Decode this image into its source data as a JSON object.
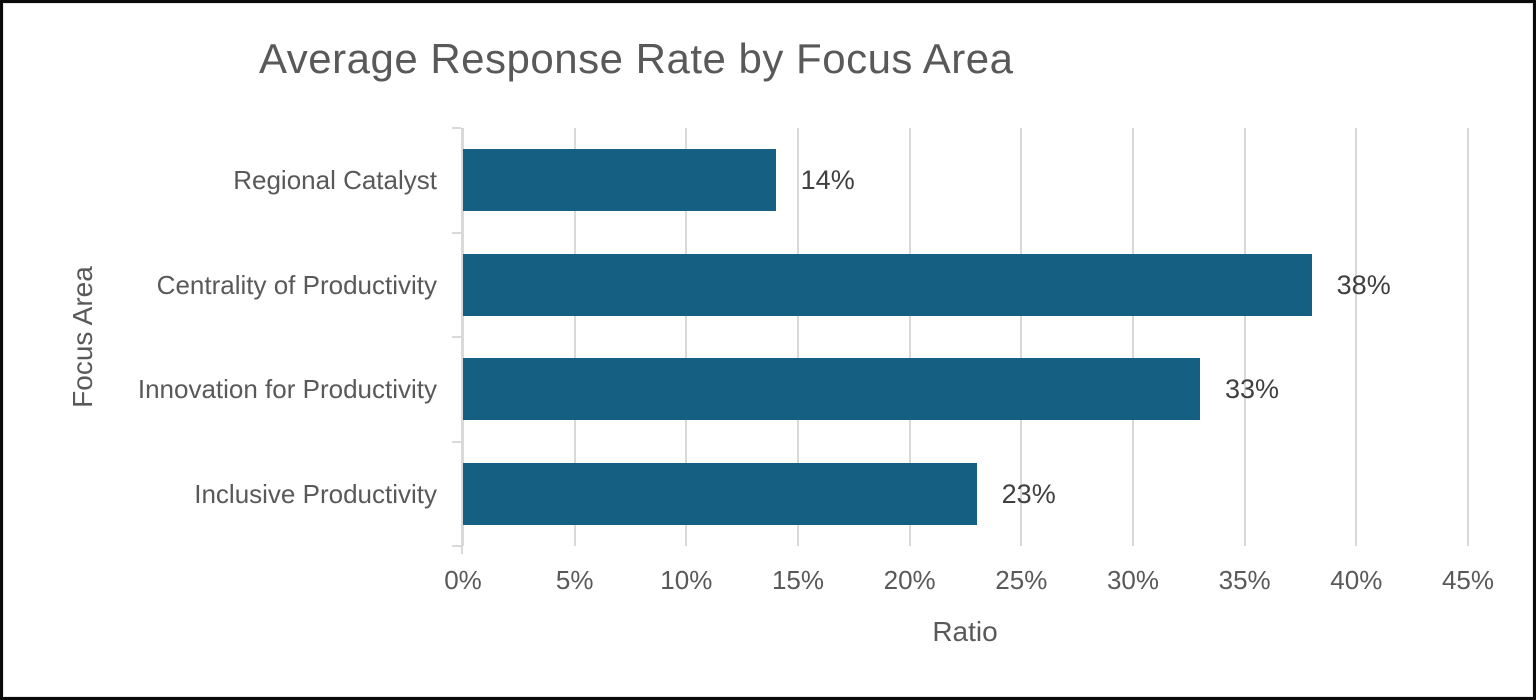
{
  "chart_data": {
    "type": "bar",
    "orientation": "horizontal",
    "title": "Average Response Rate by Focus Area",
    "categories": [
      "Regional Catalyst",
      "Centrality of Productivity",
      "Innovation for Productivity",
      "Inclusive Productivity"
    ],
    "values": [
      14,
      38,
      33,
      23
    ],
    "data_labels": [
      "14%",
      "38%",
      "33%",
      "23%"
    ],
    "xlabel": "Ratio",
    "ylabel": "Focus Area",
    "x_tick_labels": [
      "0%",
      "5%",
      "10%",
      "15%",
      "20%",
      "25%",
      "30%",
      "35%",
      "40%",
      "45%"
    ],
    "xlim": [
      0,
      45
    ],
    "grid": "vertical-major-gridlines",
    "legend": "none",
    "colors": {
      "bar": "#156082",
      "title_text": "#595959",
      "axis_text": "#595959",
      "data_label_text": "#404040",
      "gridline": "#d9d9d9"
    }
  }
}
